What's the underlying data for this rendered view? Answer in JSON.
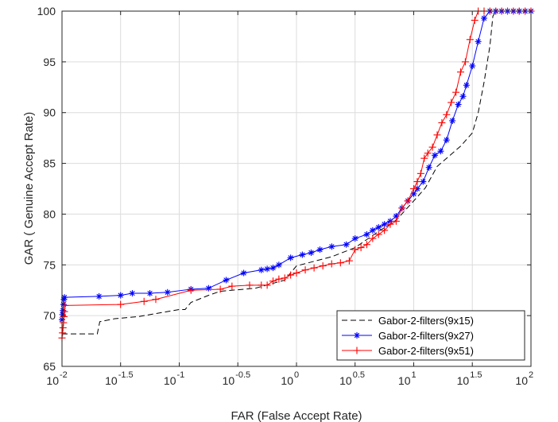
{
  "chart_data": {
    "type": "line",
    "title": "",
    "xlabel": "FAR (False Accept Rate)",
    "ylabel": "GAR ( Genuine Accept Rate)",
    "x_scale": "log",
    "xlim": [
      0.01,
      100
    ],
    "ylim": [
      65,
      100
    ],
    "grid": true,
    "legend_position": "bottom-right",
    "x_ticks": [
      {
        "base": "10",
        "exp": "-2",
        "value": 0.01
      },
      {
        "base": "10",
        "exp": "-1.5",
        "value": 0.0316
      },
      {
        "base": "10",
        "exp": "-1",
        "value": 0.1
      },
      {
        "base": "10",
        "exp": "-0.5",
        "value": 0.316
      },
      {
        "base": "10",
        "exp": "0",
        "value": 1
      },
      {
        "base": "10",
        "exp": "0.5",
        "value": 3.16
      },
      {
        "base": "10",
        "exp": "1",
        "value": 10
      },
      {
        "base": "10",
        "exp": "1.5",
        "value": 31.6
      },
      {
        "base": "10",
        "exp": "2",
        "value": 100
      }
    ],
    "y_ticks": [
      "65",
      "70",
      "75",
      "80",
      "85",
      "90",
      "95",
      "100"
    ],
    "series": [
      {
        "name": "Gabor-2-filters(9x15)",
        "color": "#000000",
        "style": "dashed",
        "marker": "none",
        "points": [
          [
            0.01,
            68.2
          ],
          [
            0.0126,
            68.2
          ],
          [
            0.02,
            68.2
          ],
          [
            0.021,
            69.4
          ],
          [
            0.0282,
            69.7
          ],
          [
            0.0447,
            69.9
          ],
          [
            0.0631,
            70.2
          ],
          [
            0.1,
            70.6
          ],
          [
            0.1122,
            70.6
          ],
          [
            0.1259,
            71.3
          ],
          [
            0.1778,
            72.0
          ],
          [
            0.2238,
            72.4
          ],
          [
            0.4467,
            72.7
          ],
          [
            0.7943,
            73.5
          ],
          [
            1.0,
            74.9
          ],
          [
            1.9953,
            75.8
          ],
          [
            3.1623,
            76.7
          ],
          [
            5.0119,
            78.3
          ],
          [
            7.0795,
            79.4
          ],
          [
            10.0,
            81.3
          ],
          [
            12.5893,
            82.6
          ],
          [
            15.8489,
            84.7
          ],
          [
            19.9526,
            85.7
          ],
          [
            25.1189,
            86.7
          ],
          [
            31.6228,
            88.0
          ],
          [
            35.4813,
            90.0
          ],
          [
            39.8107,
            93.0
          ],
          [
            44.6684,
            96.6
          ],
          [
            47.3151,
            99.5
          ],
          [
            50.1187,
            100.0
          ],
          [
            100.0,
            100.0
          ]
        ]
      },
      {
        "name": "Gabor-2-filters(9x27)",
        "color": "#0000ff",
        "style": "solid",
        "marker": "asterisk",
        "points": [
          [
            0.01,
            69.6
          ],
          [
            0.0101,
            70.1
          ],
          [
            0.0102,
            70.5
          ],
          [
            0.0103,
            71.1
          ],
          [
            0.0104,
            71.6
          ],
          [
            0.0105,
            71.8
          ],
          [
            0.0207,
            71.9
          ],
          [
            0.0316,
            72.0
          ],
          [
            0.0398,
            72.2
          ],
          [
            0.0562,
            72.2
          ],
          [
            0.0794,
            72.3
          ],
          [
            0.1259,
            72.6
          ],
          [
            0.1778,
            72.7
          ],
          [
            0.2512,
            73.5
          ],
          [
            0.3548,
            74.2
          ],
          [
            0.5012,
            74.5
          ],
          [
            0.5623,
            74.6
          ],
          [
            0.631,
            74.7
          ],
          [
            0.7079,
            75.0
          ],
          [
            0.8913,
            75.7
          ],
          [
            1.122,
            76.0
          ],
          [
            1.3335,
            76.2
          ],
          [
            1.5849,
            76.5
          ],
          [
            2.0,
            76.8
          ],
          [
            2.6607,
            77.0
          ],
          [
            3.1623,
            77.6
          ],
          [
            3.9811,
            78.0
          ],
          [
            4.4668,
            78.4
          ],
          [
            5.0119,
            78.7
          ],
          [
            5.6234,
            79.0
          ],
          [
            6.3096,
            79.3
          ],
          [
            7.0795,
            79.8
          ],
          [
            7.9433,
            80.6
          ],
          [
            8.9125,
            81.3
          ],
          [
            10.0,
            82.0
          ],
          [
            10.7152,
            82.5
          ],
          [
            12.0226,
            83.2
          ],
          [
            13.4896,
            84.6
          ],
          [
            15.1356,
            85.8
          ],
          [
            16.9824,
            86.2
          ],
          [
            19.0546,
            87.3
          ],
          [
            21.3796,
            89.2
          ],
          [
            23.9883,
            90.8
          ],
          [
            26.3027,
            91.6
          ],
          [
            28.1838,
            92.7
          ],
          [
            31.6228,
            94.6
          ],
          [
            35.4813,
            97.0
          ],
          [
            39.8107,
            99.3
          ],
          [
            44.6684,
            100.0
          ],
          [
            50.1187,
            100.0
          ],
          [
            56.2341,
            100.0
          ],
          [
            63.0957,
            100.0
          ],
          [
            70.7946,
            100.0
          ],
          [
            79.4328,
            100.0
          ],
          [
            89.1251,
            100.0
          ],
          [
            100.0,
            100.0
          ]
        ]
      },
      {
        "name": "Gabor-2-filters(9x51)",
        "color": "#ff0000",
        "style": "solid",
        "marker": "plus",
        "points": [
          [
            0.01,
            67.8
          ],
          [
            0.0101,
            68.3
          ],
          [
            0.0102,
            68.8
          ],
          [
            0.0103,
            69.3
          ],
          [
            0.0104,
            69.9
          ],
          [
            0.0105,
            70.4
          ],
          [
            0.0106,
            71.0
          ],
          [
            0.0316,
            71.1
          ],
          [
            0.0501,
            71.4
          ],
          [
            0.0631,
            71.6
          ],
          [
            0.1259,
            72.5
          ],
          [
            0.2239,
            72.6
          ],
          [
            0.2818,
            72.9
          ],
          [
            0.3981,
            73.0
          ],
          [
            0.5012,
            73.0
          ],
          [
            0.5623,
            73.0
          ],
          [
            0.631,
            73.4
          ],
          [
            0.7079,
            73.6
          ],
          [
            0.7943,
            73.7
          ],
          [
            0.8913,
            74.0
          ],
          [
            1.0,
            74.2
          ],
          [
            1.1885,
            74.5
          ],
          [
            1.4125,
            74.7
          ],
          [
            1.6788,
            74.9
          ],
          [
            1.9953,
            75.1
          ],
          [
            2.3714,
            75.2
          ],
          [
            2.8184,
            75.4
          ],
          [
            3.1623,
            76.5
          ],
          [
            3.5481,
            76.7
          ],
          [
            3.9811,
            77.0
          ],
          [
            4.4668,
            77.6
          ],
          [
            5.0119,
            78.0
          ],
          [
            5.6234,
            78.4
          ],
          [
            6.3096,
            79.0
          ],
          [
            7.0795,
            79.3
          ],
          [
            7.9433,
            80.6
          ],
          [
            8.9125,
            81.3
          ],
          [
            10.0,
            82.5
          ],
          [
            10.7152,
            83.2
          ],
          [
            11.4815,
            84.0
          ],
          [
            12.3027,
            85.5
          ],
          [
            13.1826,
            86.0
          ],
          [
            14.4544,
            86.6
          ],
          [
            15.8489,
            87.8
          ],
          [
            17.378,
            89.0
          ],
          [
            19.0546,
            89.8
          ],
          [
            20.893,
            91.0
          ],
          [
            22.9087,
            92.0
          ],
          [
            25.1189,
            94.0
          ],
          [
            27.5423,
            95.0
          ],
          [
            30.1995,
            97.2
          ],
          [
            33.1131,
            99.1
          ],
          [
            35.4813,
            100.0
          ],
          [
            39.8107,
            100.0
          ],
          [
            44.6684,
            100.0
          ],
          [
            50.1187,
            100.0
          ],
          [
            56.2341,
            100.0
          ],
          [
            63.0957,
            100.0
          ],
          [
            70.7946,
            100.0
          ],
          [
            79.4328,
            100.0
          ],
          [
            89.1251,
            100.0
          ],
          [
            100.0,
            100.0
          ]
        ]
      }
    ]
  }
}
